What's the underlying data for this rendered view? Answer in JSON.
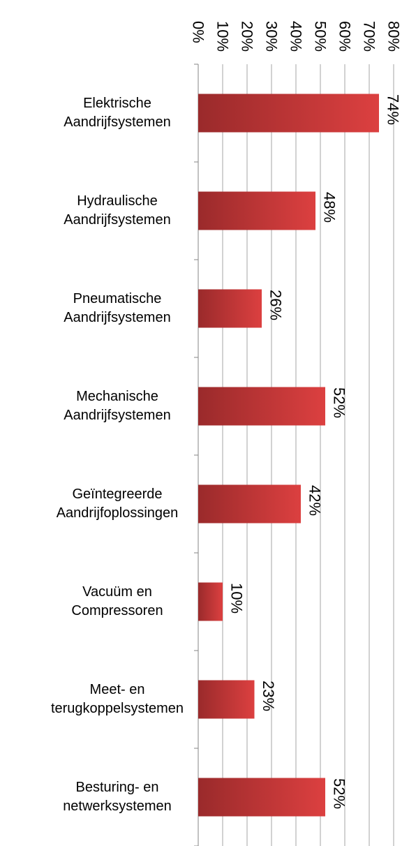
{
  "chart_data": {
    "type": "bar",
    "orientation": "horizontal",
    "categories": [
      "Elektrische\nAandrijfsystemen",
      "Hydraulische\nAandrijfsystemen",
      "Pneumatische\nAandrijfsystemen",
      "Mechanische\nAandrijfsystemen",
      "Geïntegreerde\nAandrijfoplossingen",
      "Vacuüm en\nCompressoren",
      "Meet- en\nterugkoppelsystemen",
      "Besturing- en\nnetwerksystemen"
    ],
    "values": [
      74,
      48,
      26,
      52,
      42,
      10,
      23,
      52
    ],
    "value_labels": [
      "74%",
      "48%",
      "26%",
      "52%",
      "42%",
      "10%",
      "23%",
      "52%"
    ],
    "color": "#c43535",
    "xlim": [
      0,
      80
    ],
    "xticks": [
      {
        "value": 0,
        "label": "0%"
      },
      {
        "value": 10,
        "label": "10%"
      },
      {
        "value": 20,
        "label": "20%"
      },
      {
        "value": 30,
        "label": "30%"
      },
      {
        "value": 40,
        "label": "40%"
      },
      {
        "value": 50,
        "label": "50%"
      },
      {
        "value": 60,
        "label": "60%"
      },
      {
        "value": 70,
        "label": "70%"
      },
      {
        "value": 80,
        "label": "80%"
      }
    ],
    "grid": true
  }
}
